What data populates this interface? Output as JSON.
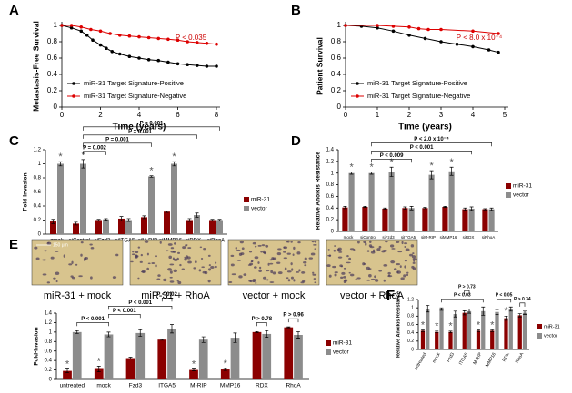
{
  "chart_data": [
    {
      "type": "line",
      "panel": "A",
      "ylabel": "Metastasis-Free Survival",
      "xlabel": "Time (years)",
      "xlim": [
        0,
        8
      ],
      "xticks": [
        0,
        2,
        4,
        6,
        8
      ],
      "ylim": [
        0,
        1
      ],
      "yticks": [
        0,
        0.2,
        0.4,
        0.6,
        0.8,
        1
      ],
      "annotation": "P < 0.035",
      "annotation_color": "#cc0000",
      "legend": "lower left",
      "series": [
        {
          "name": "miR-31 Target Signature-Positive",
          "color": "#000000",
          "x": [
            0,
            0.5,
            1,
            1.3,
            1.6,
            2,
            2.3,
            2.6,
            3,
            3.5,
            4,
            4.5,
            5,
            5.5,
            6,
            6.5,
            7,
            7.5,
            8
          ],
          "values": [
            1,
            0.97,
            0.93,
            0.88,
            0.82,
            0.76,
            0.72,
            0.68,
            0.65,
            0.62,
            0.6,
            0.58,
            0.57,
            0.55,
            0.53,
            0.52,
            0.51,
            0.5,
            0.5
          ]
        },
        {
          "name": "miR-31 Target Signature-Negative",
          "color": "#dd0000",
          "x": [
            0,
            0.5,
            1,
            1.5,
            2,
            2.5,
            3,
            3.5,
            4,
            4.5,
            5,
            5.5,
            6,
            6.5,
            7,
            7.5,
            8
          ],
          "values": [
            1,
            1,
            0.98,
            0.95,
            0.93,
            0.9,
            0.88,
            0.87,
            0.86,
            0.85,
            0.84,
            0.83,
            0.82,
            0.8,
            0.79,
            0.78,
            0.77
          ]
        }
      ]
    },
    {
      "type": "line",
      "panel": "B",
      "ylabel": "Patient Survival",
      "xlabel": "Time (years)",
      "xlim": [
        0,
        5
      ],
      "xticks": [
        0,
        1,
        2,
        3,
        4,
        5
      ],
      "ylim": [
        0,
        1
      ],
      "yticks": [
        0,
        0.2,
        0.4,
        0.6,
        0.8,
        1
      ],
      "annotation": "P < 8.0 x 10⁻⁴",
      "annotation_color": "#cc0000",
      "legend": "lower left",
      "series": [
        {
          "name": "miR-31 Target Signature-Positive",
          "color": "#000000",
          "x": [
            0,
            0.5,
            1,
            1.5,
            2,
            2.5,
            3,
            3.5,
            4,
            4.5,
            4.8
          ],
          "values": [
            1,
            0.99,
            0.97,
            0.93,
            0.88,
            0.84,
            0.8,
            0.77,
            0.74,
            0.7,
            0.67
          ]
        },
        {
          "name": "miR-31 Target Signature-Negative",
          "color": "#dd0000",
          "x": [
            0,
            1,
            1.5,
            2,
            2.3,
            2.6,
            3,
            4,
            4.8
          ],
          "values": [
            1,
            1,
            0.99,
            0.98,
            0.96,
            0.95,
            0.95,
            0.93,
            0.9
          ]
        }
      ]
    },
    {
      "type": "bar",
      "panel": "C",
      "ylabel": "Fold-Invasion",
      "ylim": [
        0,
        1.2
      ],
      "yticks": [
        0,
        0.2,
        0.4,
        0.6,
        0.8,
        1,
        1.2
      ],
      "categories": [
        "mock",
        "siControl",
        "siFzd3",
        "siITGA5",
        "siM-RIP",
        "siMMP16",
        "siRDX",
        "siRhoA"
      ],
      "series": [
        {
          "name": "miR-31",
          "color": "#8b0000",
          "values": [
            0.18,
            0.15,
            0.2,
            0.22,
            0.24,
            0.32,
            0.2,
            0.2
          ],
          "errors": [
            0.03,
            0.02,
            0.01,
            0.03,
            0.02,
            0.01,
            0.02,
            0.01
          ],
          "significance": [
            null,
            null,
            null,
            null,
            null,
            null,
            null,
            null
          ]
        },
        {
          "name": "vector",
          "color": "#8c8c8c",
          "values": [
            1,
            1,
            0.21,
            0.2,
            0.82,
            1,
            0.27,
            0.2
          ],
          "errors": [
            0.03,
            0.06,
            0.01,
            0.02,
            0.01,
            0.03,
            0.03,
            0.01
          ],
          "significance": [
            "*",
            "*",
            null,
            null,
            "*",
            "*",
            null,
            null
          ]
        }
      ],
      "comparisons": [
        {
          "from": 1,
          "to": 2,
          "label": "P = 0.002"
        },
        {
          "from": 1,
          "to": 4,
          "label": "P = 0.001"
        },
        {
          "from": 1,
          "to": 6,
          "label": "P = 0.001"
        },
        {
          "from": 1,
          "to": 7,
          "label": "P = 0.001"
        }
      ]
    },
    {
      "type": "bar",
      "panel": "D",
      "ylabel": "Relative Anoikis Resistance",
      "ylim": [
        0,
        1.4
      ],
      "yticks": [
        0,
        0.2,
        0.4,
        0.6,
        0.8,
        1,
        1.2,
        1.4
      ],
      "categories": [
        "mock",
        "siControl",
        "siFzd3",
        "siITGA5",
        "siM-RIP",
        "siMMP16",
        "siRDX",
        "siRhoA"
      ],
      "series": [
        {
          "name": "miR-31",
          "color": "#8b0000",
          "values": [
            0.41,
            0.42,
            0.39,
            0.4,
            0.4,
            0.42,
            0.38,
            0.38
          ],
          "errors": [
            0.02,
            0.01,
            0.01,
            0.02,
            0.01,
            0.01,
            0.02,
            0.01
          ],
          "significance": [
            null,
            null,
            null,
            null,
            null,
            null,
            null,
            null
          ]
        },
        {
          "name": "vector",
          "color": "#8c8c8c",
          "values": [
            1,
            1,
            1.02,
            0.4,
            0.97,
            1.03,
            0.39,
            0.38
          ],
          "errors": [
            0.02,
            0.02,
            0.08,
            0.03,
            0.07,
            0.07,
            0.03,
            0.02
          ],
          "significance": [
            "*",
            "*",
            "*",
            null,
            "*",
            "*",
            null,
            null
          ]
        }
      ],
      "comparisons": [
        {
          "from": 1,
          "to": 3,
          "label": "P < 0.009"
        },
        {
          "from": 1,
          "to": 6,
          "label": "P < 0.001"
        },
        {
          "from": 1,
          "to": 7,
          "label": "P < 2.0 x 10⁻⁴"
        }
      ]
    },
    {
      "type": "bar",
      "panel": "E",
      "ylabel": "Fold-Invasion",
      "ylim": [
        0,
        1.4
      ],
      "yticks": [
        0,
        0.2,
        0.4,
        0.6,
        0.8,
        1,
        1.2,
        1.4
      ],
      "image_captions": [
        "miR-31 + mock",
        "miR-31 + RhoA",
        "vector + mock",
        "vector + RhoA"
      ],
      "scale_label": "150 μm",
      "categories": [
        "untreated",
        "mock",
        "Fzd3",
        "ITGA5",
        "M-RIP",
        "MMP16",
        "RDX",
        "RhoA"
      ],
      "series": [
        {
          "name": "miR-31",
          "color": "#8b0000",
          "values": [
            0.18,
            0.22,
            0.45,
            0.84,
            0.2,
            0.21,
            1,
            1.1
          ],
          "errors": [
            0.04,
            0.06,
            0.02,
            0.01,
            0.02,
            0.02,
            0.01,
            0.01
          ],
          "significance": [
            "*",
            "*",
            null,
            null,
            "*",
            "*",
            null,
            null
          ]
        },
        {
          "name": "vector",
          "color": "#8c8c8c",
          "values": [
            1,
            0.95,
            0.98,
            1.07,
            0.84,
            0.88,
            0.96,
            0.94
          ],
          "errors": [
            0.03,
            0.05,
            0.07,
            0.09,
            0.06,
            0.1,
            0.07,
            0.07
          ],
          "significance": [
            null,
            null,
            null,
            null,
            null,
            null,
            null,
            null
          ]
        }
      ],
      "comparisons": [
        {
          "from": 0,
          "to": 1,
          "label": "P < 0.001"
        },
        {
          "from": 1,
          "to": 2,
          "label": "P < 0.001"
        },
        {
          "from": 1,
          "to": 3,
          "label": "P < 0.001"
        },
        {
          "from": 3,
          "to": 3,
          "label": "P < 0.02"
        },
        {
          "from": 6,
          "to": 6,
          "label": "P > 0.78"
        },
        {
          "from": 7,
          "to": 7,
          "label": "P > 0.96"
        }
      ]
    },
    {
      "type": "bar",
      "panel": "F",
      "ylabel": "Relative Anoikis Resistance",
      "ylim": [
        0,
        1.2
      ],
      "yticks": [
        0,
        0.2,
        0.4,
        0.6,
        0.8,
        1,
        1.2
      ],
      "categories": [
        "untreated",
        "mock",
        "Fzd3",
        "ITGA5",
        "M-RIP",
        "MMP16",
        "RDX",
        "RhoA"
      ],
      "series": [
        {
          "name": "miR-31",
          "color": "#8b0000",
          "values": [
            0.45,
            0.42,
            0.42,
            0.88,
            0.45,
            0.45,
            0.75,
            0.82
          ],
          "errors": [
            0.02,
            0.02,
            0.02,
            0.05,
            0.02,
            0.02,
            0.05,
            0.04
          ],
          "significance": [
            "*",
            "*",
            "*",
            null,
            "*",
            "*",
            "*",
            null
          ]
        },
        {
          "name": "vector",
          "color": "#8c8c8c",
          "values": [
            0.98,
            0.97,
            0.85,
            0.92,
            0.92,
            0.9,
            0.97,
            0.88
          ],
          "errors": [
            0.08,
            0.03,
            0.07,
            0.05,
            0.1,
            0.06,
            0.05,
            0.04
          ],
          "significance": [
            null,
            null,
            null,
            null,
            null,
            null,
            null,
            null
          ]
        }
      ],
      "comparisons": [
        {
          "from": 1,
          "to": 4,
          "label": "P < 0.03"
        },
        {
          "from": 3,
          "to": 3,
          "label": "P > 0.73"
        },
        {
          "from": 5,
          "to": 6,
          "label": "P < 0.05"
        },
        {
          "from": 7,
          "to": 7,
          "label": "P > 0.34"
        }
      ]
    }
  ]
}
